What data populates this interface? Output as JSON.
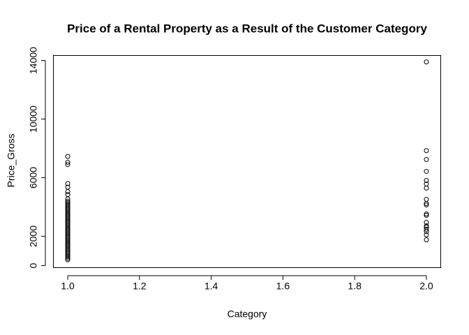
{
  "chart_data": {
    "type": "scatter",
    "title": "Price of a Rental Property as a Result of the Customer Category",
    "x_label": "Category",
    "y_label": "Price_Gross",
    "x": [
      1,
      1,
      1,
      1,
      1,
      1,
      1,
      1,
      1,
      1,
      1,
      1,
      1,
      1,
      1,
      1,
      1,
      1,
      1,
      1,
      1,
      1,
      1,
      1,
      1,
      1,
      1,
      1,
      1,
      1,
      1,
      1,
      1,
      1,
      1,
      1,
      1,
      1,
      1,
      1,
      1,
      1,
      1,
      1,
      1,
      1,
      1,
      1,
      1,
      2,
      2,
      2,
      2,
      2,
      2,
      2,
      2,
      2,
      2,
      2,
      2,
      2,
      2,
      2,
      2,
      2,
      2,
      2
    ],
    "values": [
      7450,
      7050,
      6900,
      5600,
      5350,
      5050,
      4850,
      4550,
      4400,
      4300,
      4200,
      4100,
      4000,
      3900,
      3800,
      3700,
      3600,
      3500,
      3400,
      3300,
      3200,
      3100,
      3000,
      2900,
      2800,
      2700,
      2600,
      2500,
      2400,
      2300,
      2200,
      2100,
      2000,
      1900,
      1800,
      1700,
      1600,
      1500,
      1400,
      1300,
      1200,
      1100,
      1000,
      900,
      800,
      700,
      600,
      500,
      400,
      13900,
      7850,
      7240,
      6430,
      5810,
      5570,
      5290,
      4520,
      4240,
      4140,
      3520,
      3430,
      2950,
      2710,
      2620,
      2480,
      2330,
      2100,
      1760
    ],
    "color": "#000000",
    "xlim": [
      0.96,
      2.04
    ],
    "ylim": [
      -140,
      14340
    ],
    "xticks": [
      {
        "value": 1.0,
        "label": "1.0"
      },
      {
        "value": 1.2,
        "label": "1.2"
      },
      {
        "value": 1.4,
        "label": "1.4"
      },
      {
        "value": 1.6,
        "label": "1.6"
      },
      {
        "value": 1.8,
        "label": "1.8"
      },
      {
        "value": 2.0,
        "label": "2.0"
      }
    ],
    "yticks": [
      0,
      2000,
      6000,
      10000,
      14000
    ],
    "grid": false
  }
}
